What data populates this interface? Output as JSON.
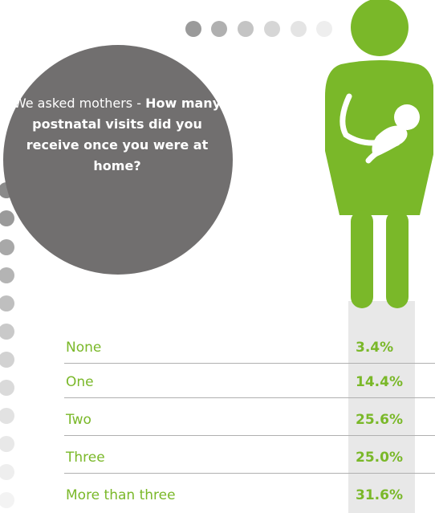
{
  "question": {
    "prefix": "We asked mothers - ",
    "bold": "How many postnatal visits did you receive once you were at home?"
  },
  "results": [
    {
      "label": "None",
      "value": "3.4%"
    },
    {
      "label": "One",
      "value": "14.4%"
    },
    {
      "label": "Two",
      "value": "25.6%"
    },
    {
      "label": "Three",
      "value": "25.0%"
    },
    {
      "label": "More than three",
      "value": "31.6%"
    }
  ],
  "colors": {
    "accent_green": "#7ab829",
    "bubble_grey": "#716f6f",
    "column_grey": "#e8e8e8",
    "divider": "#b0b0b0"
  },
  "icons": {
    "figure": "mother-holding-baby-icon"
  }
}
